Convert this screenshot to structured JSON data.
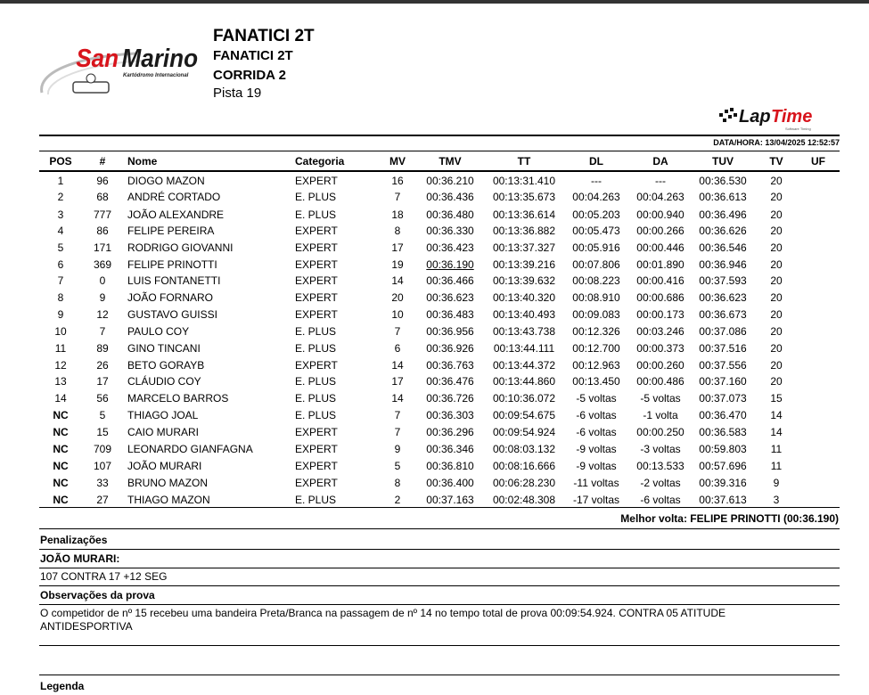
{
  "header": {
    "event": "FANATICI 2T",
    "subtitle": "FANATICI 2T",
    "race": "CORRIDA 2",
    "track": "Pista 19",
    "logo_text": "San Marino Kartódromo Internacional",
    "software_logo": "LapTime Software Timing",
    "datetime": "DATA/HORA: 13/04/2025 12:52:57"
  },
  "columns": [
    "POS",
    "#",
    "Nome",
    "Categoria",
    "MV",
    "TMV",
    "TT",
    "DL",
    "DA",
    "TUV",
    "TV",
    "UF"
  ],
  "rows": [
    [
      "1",
      "96",
      "DIOGO MAZON",
      "EXPERT",
      "16",
      "00:36.210",
      "00:13:31.410",
      "---",
      "---",
      "00:36.530",
      "20",
      ""
    ],
    [
      "2",
      "68",
      "ANDRÉ CORTADO",
      "E. PLUS",
      "7",
      "00:36.436",
      "00:13:35.673",
      "00:04.263",
      "00:04.263",
      "00:36.613",
      "20",
      ""
    ],
    [
      "3",
      "777",
      "JOÃO ALEXANDRE",
      "E. PLUS",
      "18",
      "00:36.480",
      "00:13:36.614",
      "00:05.203",
      "00:00.940",
      "00:36.496",
      "20",
      ""
    ],
    [
      "4",
      "86",
      "FELIPE PEREIRA",
      "EXPERT",
      "8",
      "00:36.330",
      "00:13:36.882",
      "00:05.473",
      "00:00.266",
      "00:36.626",
      "20",
      ""
    ],
    [
      "5",
      "171",
      "RODRIGO GIOVANNI",
      "EXPERT",
      "17",
      "00:36.423",
      "00:13:37.327",
      "00:05.916",
      "00:00.446",
      "00:36.546",
      "20",
      ""
    ],
    [
      "6",
      "369",
      "FELIPE PRINOTTI",
      "EXPERT",
      "19",
      "00:36.190",
      "00:13:39.216",
      "00:07.806",
      "00:01.890",
      "00:36.946",
      "20",
      ""
    ],
    [
      "7",
      "0",
      "LUIS FONTANETTI",
      "EXPERT",
      "14",
      "00:36.466",
      "00:13:39.632",
      "00:08.223",
      "00:00.416",
      "00:37.593",
      "20",
      ""
    ],
    [
      "8",
      "9",
      "JOÃO FORNARO",
      "EXPERT",
      "20",
      "00:36.623",
      "00:13:40.320",
      "00:08.910",
      "00:00.686",
      "00:36.623",
      "20",
      ""
    ],
    [
      "9",
      "12",
      "GUSTAVO GUISSI",
      "EXPERT",
      "10",
      "00:36.483",
      "00:13:40.493",
      "00:09.083",
      "00:00.173",
      "00:36.673",
      "20",
      ""
    ],
    [
      "10",
      "7",
      "PAULO COY",
      "E. PLUS",
      "7",
      "00:36.956",
      "00:13:43.738",
      "00:12.326",
      "00:03.246",
      "00:37.086",
      "20",
      ""
    ],
    [
      "11",
      "89",
      "GINO TINCANI",
      "E. PLUS",
      "6",
      "00:36.926",
      "00:13:44.111",
      "00:12.700",
      "00:00.373",
      "00:37.516",
      "20",
      ""
    ],
    [
      "12",
      "26",
      "BETO GORAYB",
      "EXPERT",
      "14",
      "00:36.763",
      "00:13:44.372",
      "00:12.963",
      "00:00.260",
      "00:37.556",
      "20",
      ""
    ],
    [
      "13",
      "17",
      "CLÁUDIO COY",
      "E. PLUS",
      "17",
      "00:36.476",
      "00:13:44.860",
      "00:13.450",
      "00:00.486",
      "00:37.160",
      "20",
      ""
    ],
    [
      "14",
      "56",
      "MARCELO BARROS",
      "E. PLUS",
      "14",
      "00:36.726",
      "00:10:36.072",
      "-5 voltas",
      "-5 voltas",
      "00:37.073",
      "15",
      ""
    ],
    [
      "NC",
      "5",
      "THIAGO JOAL",
      "E. PLUS",
      "7",
      "00:36.303",
      "00:09:54.675",
      "-6 voltas",
      "-1 volta",
      "00:36.470",
      "14",
      ""
    ],
    [
      "NC",
      "15",
      "CAIO MURARI",
      "EXPERT",
      "7",
      "00:36.296",
      "00:09:54.924",
      "-6 voltas",
      "00:00.250",
      "00:36.583",
      "14",
      ""
    ],
    [
      "NC",
      "709",
      "LEONARDO GIANFAGNA",
      "EXPERT",
      "9",
      "00:36.346",
      "00:08:03.132",
      "-9 voltas",
      "-3 voltas",
      "00:59.803",
      "11",
      ""
    ],
    [
      "NC",
      "107",
      "JOÃO MURARI",
      "EXPERT",
      "5",
      "00:36.810",
      "00:08:16.666",
      "-9 voltas",
      "00:13.533",
      "00:57.696",
      "11",
      ""
    ],
    [
      "NC",
      "33",
      "BRUNO MAZON",
      "EXPERT",
      "8",
      "00:36.400",
      "00:06:28.230",
      "-11 voltas",
      "-2 voltas",
      "00:39.316",
      "9",
      ""
    ],
    [
      "NC",
      "27",
      "THIAGO MAZON",
      "E. PLUS",
      "2",
      "00:37.163",
      "00:02:48.308",
      "-17 voltas",
      "-6 voltas",
      "00:37.613",
      "3",
      ""
    ]
  ],
  "best_lap": "Melhor volta: FELIPE PRINOTTI (00:36.190)",
  "penalties": {
    "title": "Penalizações",
    "driver": "JOÃO MURARI:",
    "text": "107 CONTRA 17 +12 SEG"
  },
  "observations": {
    "title": "Observações da prova",
    "line1": "O competidor de nº 15 recebeu uma bandeira Preta/Branca na passagem de nº 14 no tempo total de prova 00:09:54.924. CONTRA 05 ATITUDE",
    "line2": "ANTIDESPORTIVA"
  },
  "legend_title": "Legenda",
  "colors": {
    "logo_red": "#d8141c",
    "logo_dark": "#1a1a1a"
  }
}
